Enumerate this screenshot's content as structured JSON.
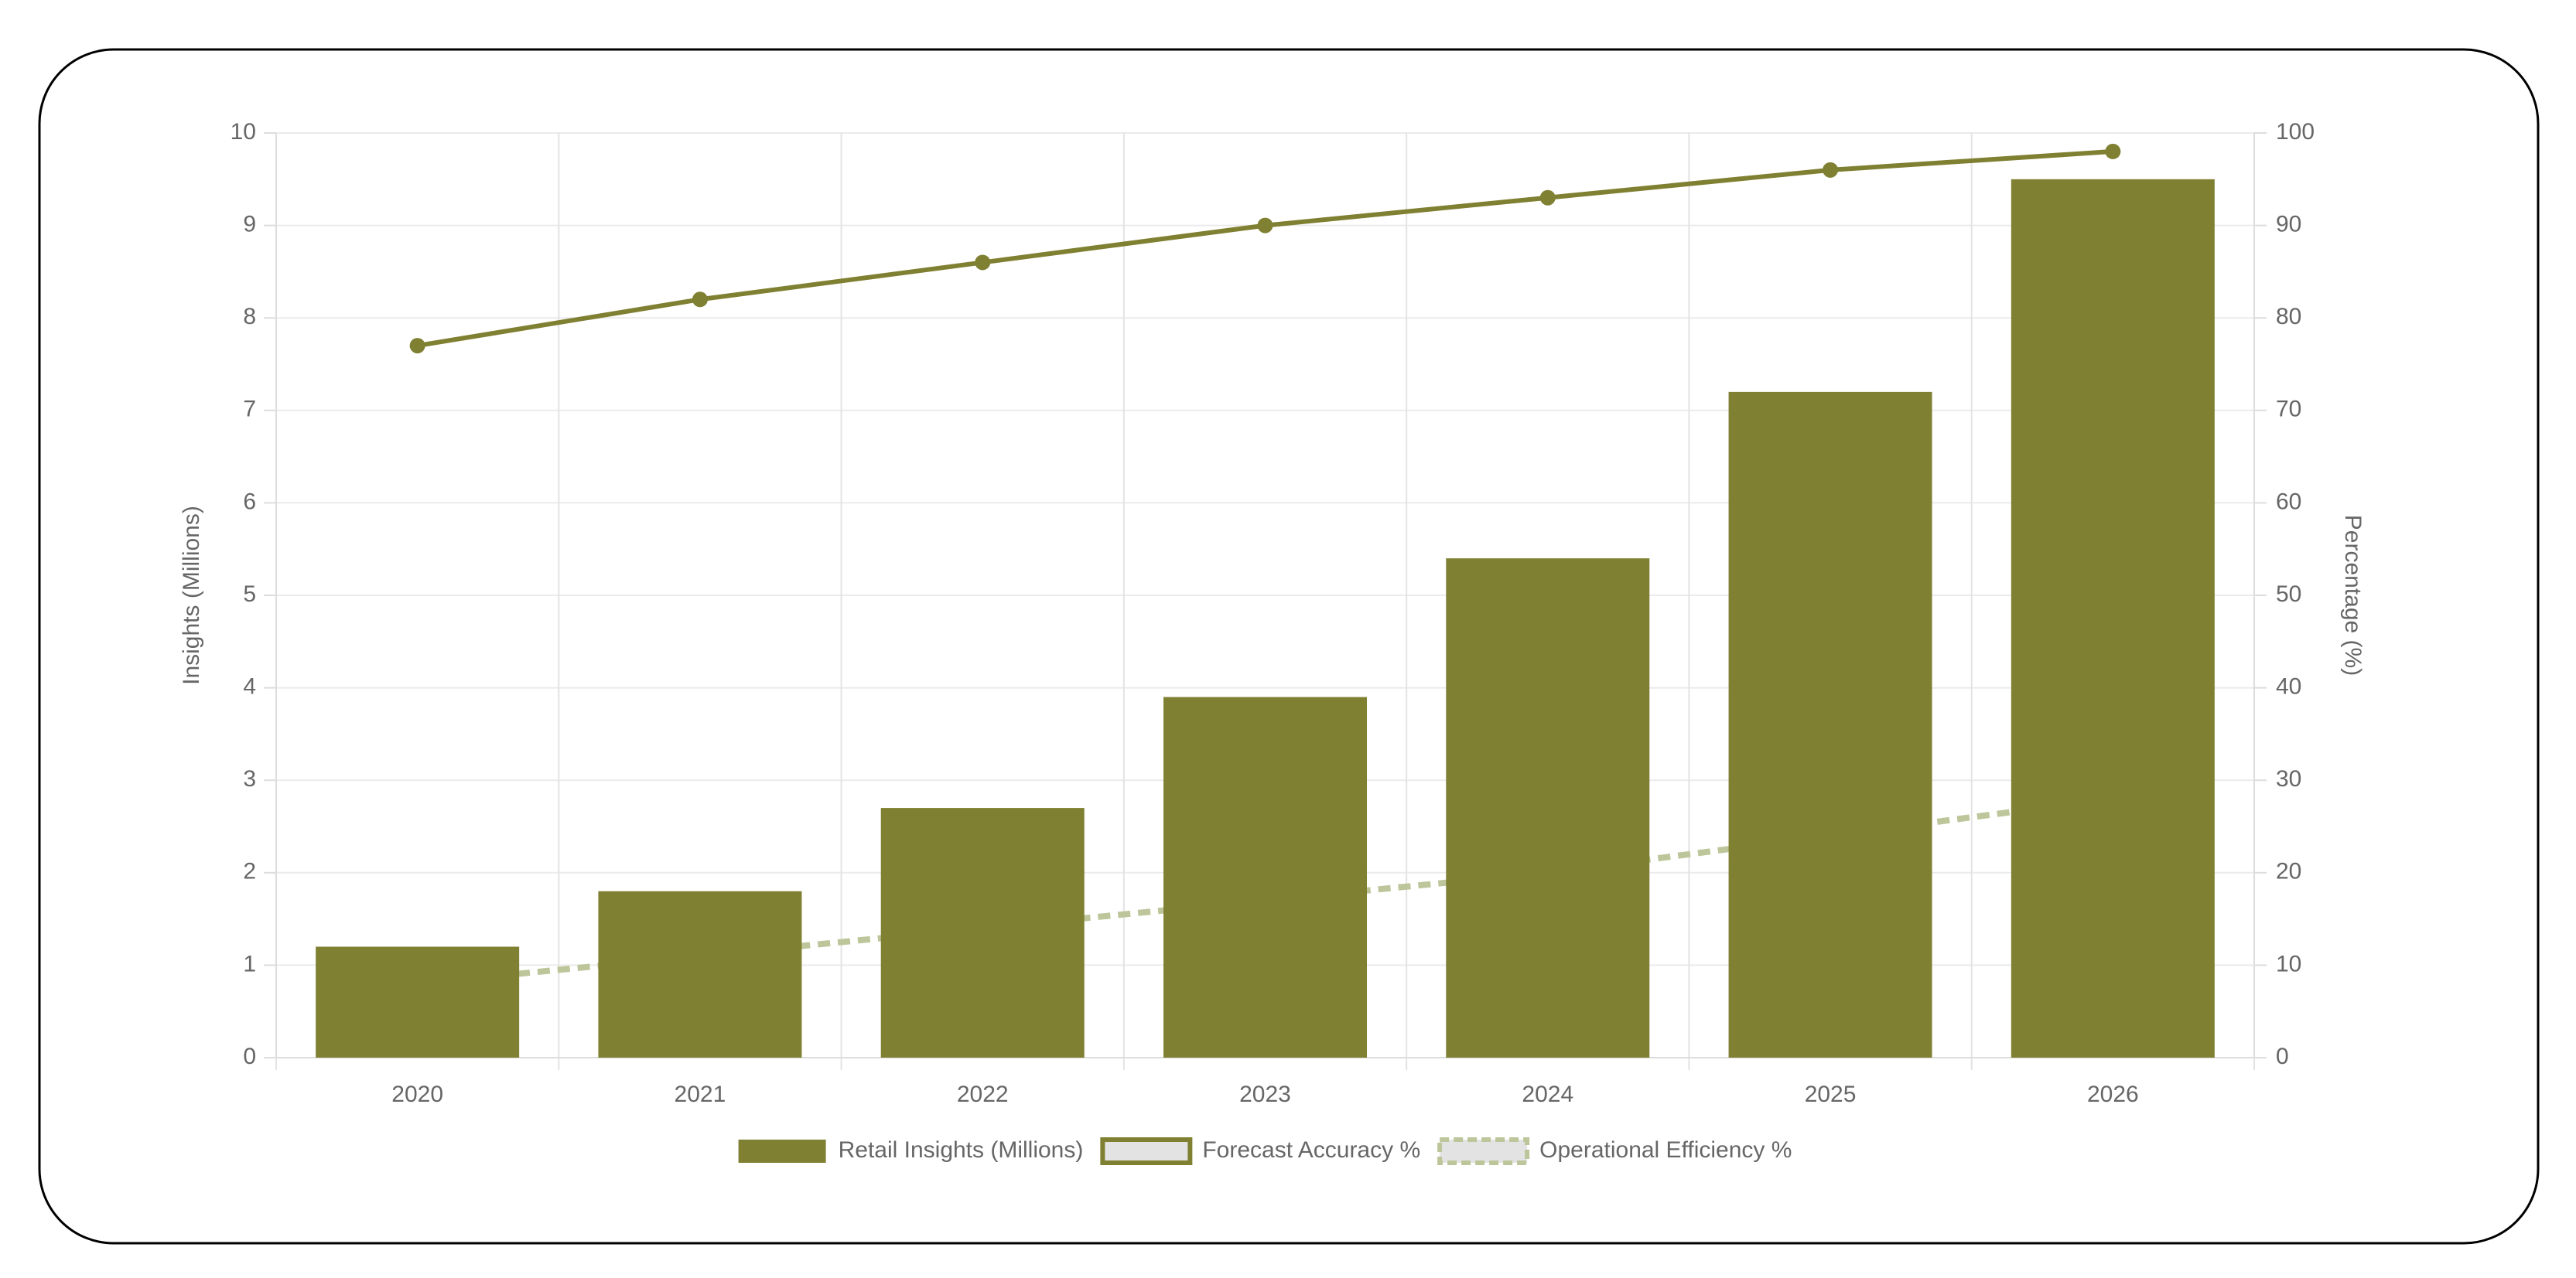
{
  "chart_data": {
    "type": "bar",
    "categories": [
      "2020",
      "2021",
      "2022",
      "2023",
      "2024",
      "2025",
      "2026"
    ],
    "y_label": "Insights (Millions)",
    "y2_label": "Percentage (%)",
    "series": [
      {
        "name": "Retail Insights (Millions)",
        "type": "bar",
        "color": "#808033",
        "values": [
          1.2,
          1.8,
          2.7,
          3.9,
          5.4,
          7.2,
          9.5
        ]
      },
      {
        "name": "Forecast Accuracy %",
        "type": "line",
        "line_style": "solid",
        "axis": "y2",
        "color": "#7f8032",
        "values": [
          77,
          82,
          86,
          90,
          93,
          96,
          98
        ]
      },
      {
        "name": "Operational Efficiency %",
        "type": "line",
        "line_style": "dashed",
        "axis": "y2",
        "color": "#bcc69a",
        "values": [
          8,
          11,
          14,
          17,
          20,
          24,
          28
        ]
      }
    ],
    "ylim": [
      0,
      10
    ],
    "yticks": [
      0,
      1,
      2,
      3,
      4,
      5,
      6,
      7,
      8,
      9,
      10
    ],
    "y2lim": [
      0,
      100
    ],
    "y2ticks": [
      0,
      10,
      20,
      30,
      40,
      50,
      60,
      70,
      80,
      90,
      100
    ],
    "grid": true,
    "legend": "bottom"
  }
}
